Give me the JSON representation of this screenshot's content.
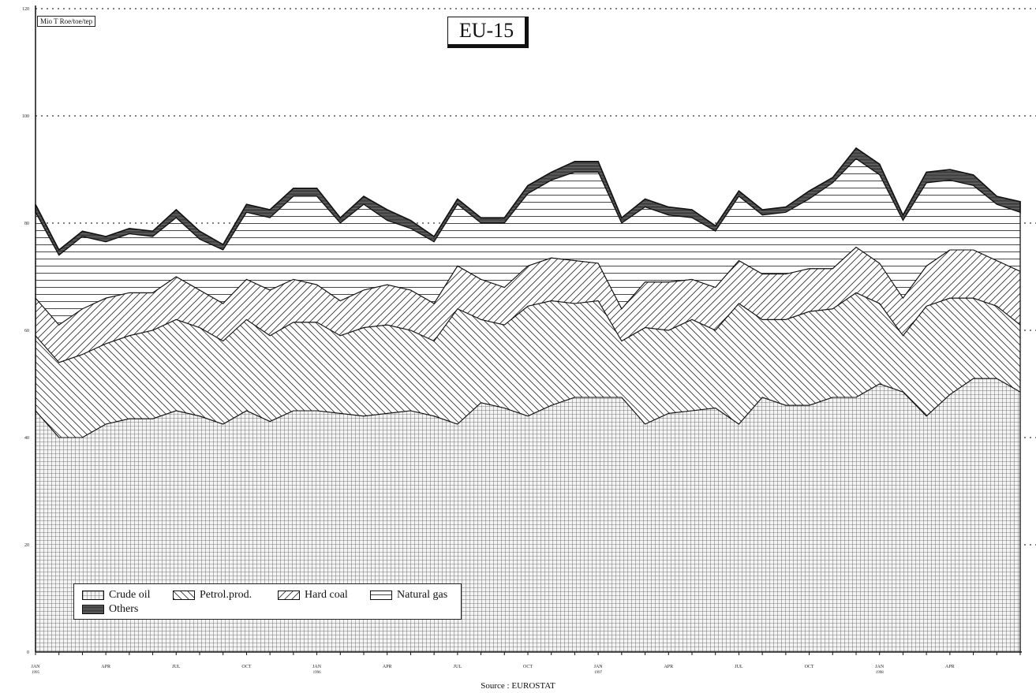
{
  "chart_data": {
    "type": "area",
    "title": "EU-15",
    "ylabel": "Mio T Roe/toe/tep",
    "source": "Source : EUROSTAT",
    "ylim": [
      0,
      120
    ],
    "yticks": [
      "0",
      "20",
      "40",
      "60",
      "80",
      "100",
      "120"
    ],
    "grid": true,
    "legend_position": "bottom-left",
    "x_tick_labels": [
      {
        "index": 0,
        "label": "JAN",
        "sub": "1995"
      },
      {
        "index": 3,
        "label": "APR",
        "sub": ""
      },
      {
        "index": 6,
        "label": "JUL",
        "sub": ""
      },
      {
        "index": 9,
        "label": "OCT",
        "sub": ""
      },
      {
        "index": 12,
        "label": "JAN",
        "sub": "1996"
      },
      {
        "index": 15,
        "label": "APR",
        "sub": ""
      },
      {
        "index": 18,
        "label": "JUL",
        "sub": ""
      },
      {
        "index": 21,
        "label": "OCT",
        "sub": ""
      },
      {
        "index": 24,
        "label": "JAN",
        "sub": "1997"
      },
      {
        "index": 27,
        "label": "APR",
        "sub": ""
      },
      {
        "index": 30,
        "label": "JUL",
        "sub": ""
      },
      {
        "index": 33,
        "label": "OCT",
        "sub": ""
      },
      {
        "index": 36,
        "label": "JAN",
        "sub": "1998"
      },
      {
        "index": 39,
        "label": "APR",
        "sub": ""
      }
    ],
    "cumulative_series": [
      {
        "name": "Crude oil",
        "pattern": "grid",
        "values": [
          45,
          40,
          40,
          42.5,
          43.5,
          43.5,
          45,
          44,
          42.5,
          45,
          43,
          45,
          45,
          44.5,
          44,
          44.5,
          45,
          44,
          42.5,
          46.5,
          45.5,
          44,
          46,
          47.5,
          47.5,
          47.5,
          42.5,
          44.5,
          45,
          45.5,
          42.5,
          47.5,
          46,
          46,
          47.5,
          47.5,
          50,
          48.5,
          44,
          48,
          51,
          51,
          48.5
        ]
      },
      {
        "name": "Petrol.prod.",
        "pattern": "diag-back",
        "values": [
          59,
          54,
          55.5,
          57.5,
          59,
          60,
          62,
          60.5,
          58,
          62,
          59,
          61.5,
          61.5,
          59,
          60.5,
          61,
          60,
          58,
          64,
          62,
          61,
          64.5,
          65.5,
          65,
          65.5,
          58,
          60.5,
          60,
          62,
          60,
          65,
          62,
          62,
          63.5,
          64,
          67,
          65,
          59,
          64.5,
          66,
          66,
          64.5,
          61
        ]
      },
      {
        "name": "Hard coal",
        "pattern": "diag-fwd",
        "values": [
          66,
          61,
          64,
          66,
          67,
          67,
          70,
          67.5,
          65,
          69.5,
          67.5,
          69.5,
          68.5,
          65.5,
          67.5,
          68.5,
          67.5,
          65,
          72,
          69.5,
          68,
          72,
          73.5,
          73,
          72.5,
          64,
          69,
          69,
          69.5,
          68,
          73,
          70.5,
          70.5,
          71.5,
          71.5,
          75.5,
          72.5,
          66,
          72,
          75,
          75,
          73,
          71
        ]
      },
      {
        "name": "Natural gas",
        "pattern": "horizontal",
        "values": [
          82,
          74,
          77.5,
          76.5,
          78,
          77.5,
          81,
          77,
          75,
          82,
          81,
          85,
          85,
          80,
          83.5,
          80.5,
          79,
          76.5,
          83.5,
          80,
          80,
          85.5,
          88,
          89.5,
          89.5,
          80,
          83,
          81.5,
          81,
          78.5,
          85,
          81.5,
          82,
          84.5,
          87.5,
          92,
          89,
          80.5,
          87.5,
          88,
          87,
          83.5,
          82
        ]
      },
      {
        "name": "Others",
        "pattern": "dark",
        "values": [
          83.5,
          75,
          78.5,
          77.5,
          79,
          78.5,
          82.5,
          78.5,
          76,
          83.5,
          82.5,
          86.5,
          86.5,
          81,
          85,
          82.5,
          80.5,
          77.5,
          84.5,
          81,
          81,
          87,
          89.5,
          91.5,
          91.5,
          81,
          84.5,
          83,
          82.5,
          79.5,
          86,
          82.5,
          83,
          86,
          88.5,
          94,
          91,
          81.5,
          89.5,
          90,
          89,
          85,
          84
        ]
      }
    ]
  }
}
